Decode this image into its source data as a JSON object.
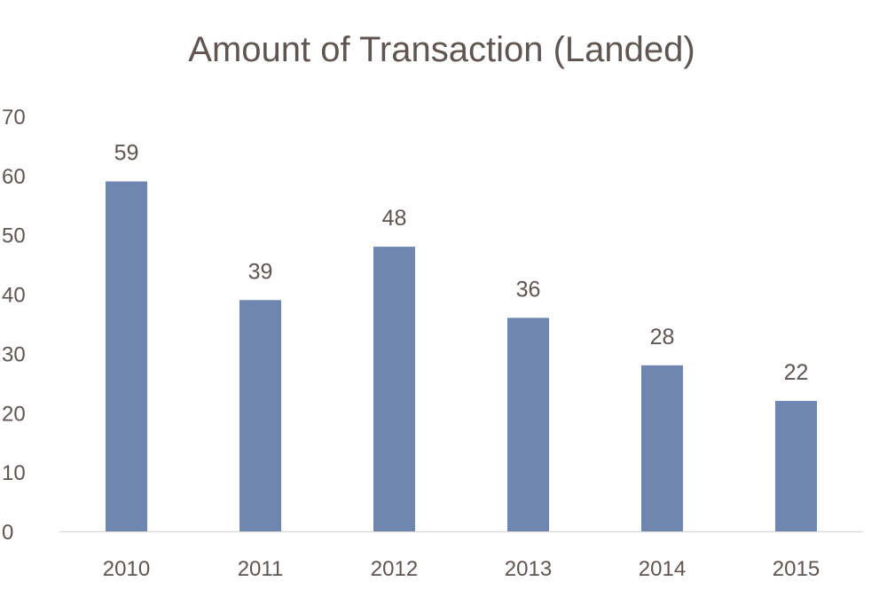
{
  "chart_data": {
    "type": "bar",
    "title": "Amount of Transaction (Landed)",
    "categories": [
      "2010",
      "2011",
      "2012",
      "2013",
      "2014",
      "2015"
    ],
    "values": [
      59,
      39,
      48,
      36,
      28,
      22
    ],
    "data_labels": [
      "59",
      "39",
      "48",
      "36",
      "28",
      "22"
    ],
    "ylim": [
      0,
      70
    ],
    "yticks": [
      0,
      10,
      20,
      30,
      40,
      50,
      60,
      70
    ],
    "xlabel": "",
    "ylabel": "",
    "grid": false,
    "legend": "none",
    "colors": {
      "bar": "#6f87b0",
      "axis_line": "#d9d9d9",
      "text": "#5f5552"
    }
  }
}
